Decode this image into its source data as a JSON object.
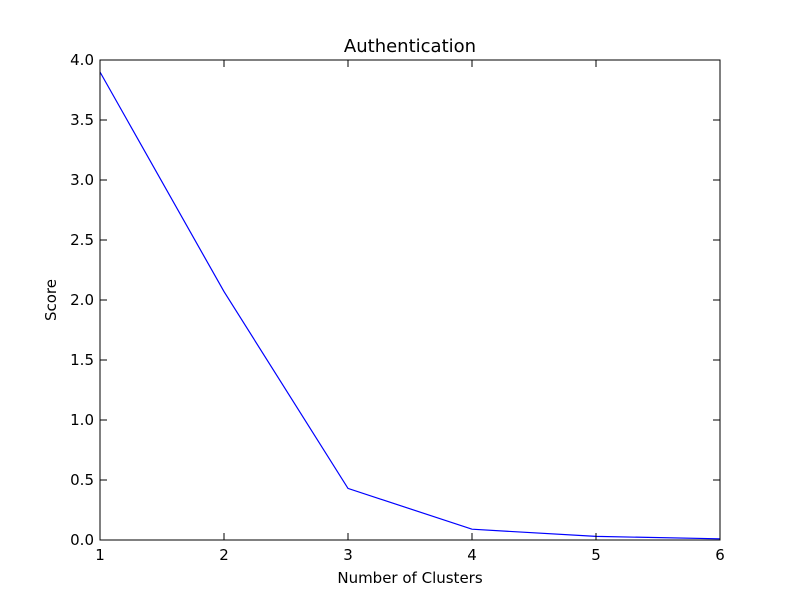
{
  "chart_data": {
    "type": "line",
    "title": "Authentication",
    "xlabel": "Number of Clusters",
    "ylabel": "Score",
    "xlim": [
      1,
      6
    ],
    "ylim": [
      0,
      4
    ],
    "x_ticks": [
      1,
      2,
      3,
      4,
      5,
      6
    ],
    "x_tick_labels": [
      "1",
      "2",
      "3",
      "4",
      "5",
      "6"
    ],
    "y_ticks": [
      0,
      0.5,
      1,
      1.5,
      2,
      2.5,
      3,
      3.5,
      4
    ],
    "y_tick_labels": [
      "0.0",
      "0.5",
      "1.0",
      "1.5",
      "2.0",
      "2.5",
      "3.0",
      "3.5",
      "4.0"
    ],
    "grid": false,
    "series": [
      {
        "x": [
          1,
          2,
          3,
          4,
          5,
          6
        ],
        "values": [
          3.9,
          2.07,
          0.43,
          0.09,
          0.03,
          0.01
        ],
        "color": "#0000ff"
      }
    ]
  }
}
